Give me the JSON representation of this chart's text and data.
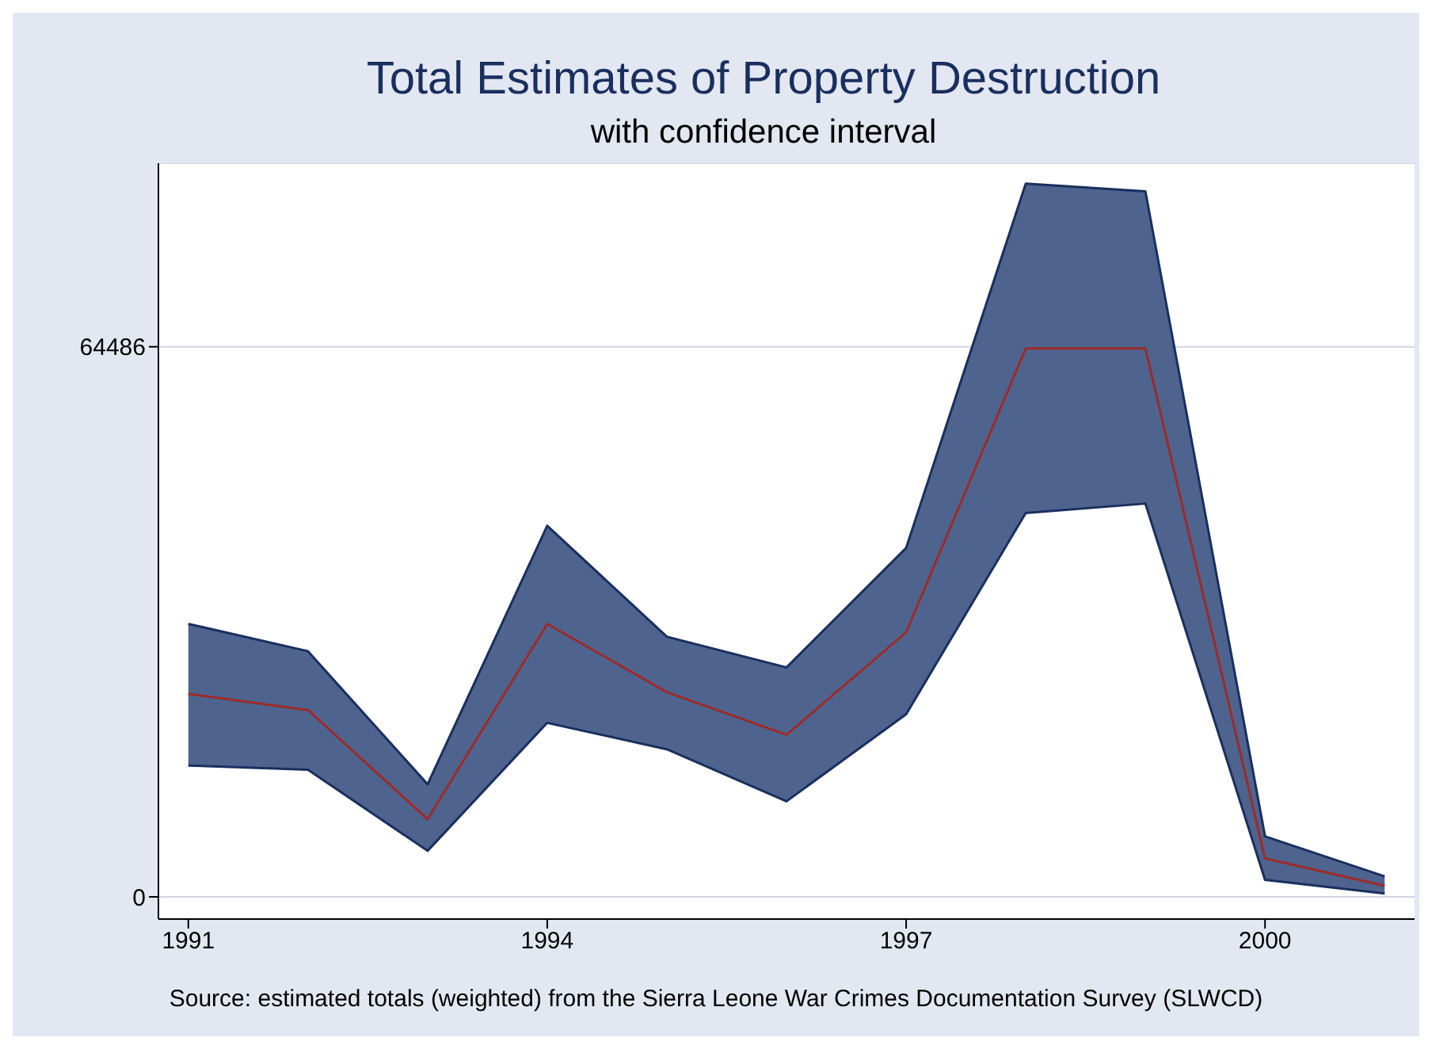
{
  "chart_data": {
    "type": "line",
    "title": "Total Estimates of Property Destruction",
    "subtitle": "with confidence interval",
    "annotations": [
      "Source: estimated totals (weighted) from the Sierra Leone War Crimes Documentation Survey (SLWCD)"
    ],
    "x": [
      1991,
      1992,
      1993,
      1994,
      1995,
      1996,
      1997,
      1998,
      1999,
      2000,
      2001
    ],
    "series": [
      {
        "color": "#9b2b2b",
        "values": [
          23800,
          21900,
          9100,
          32000,
          24000,
          19000,
          31000,
          64300,
          64300,
          4500,
          1300
        ],
        "lower": [
          15400,
          14900,
          5400,
          20400,
          17300,
          11200,
          21400,
          45000,
          46100,
          2000,
          400
        ],
        "upper": [
          32000,
          28800,
          13200,
          43500,
          30500,
          26900,
          40900,
          83600,
          82700,
          7100,
          2400
        ]
      },
      {
        "color": "#1a2f5e",
        "values": [
          32000,
          28800,
          13200,
          43500,
          30500,
          26900,
          40900,
          83600,
          82700,
          7100,
          2400
        ]
      },
      {
        "color": "#1a2f5e",
        "values": [
          15400,
          14900,
          5400,
          20400,
          17300,
          11200,
          21400,
          45000,
          46100,
          2000,
          400
        ]
      }
    ],
    "xlim": [
      1990.75,
      2001.25
    ],
    "xticks": [
      1991,
      1994,
      1997,
      2000
    ],
    "ylim": [
      -2600,
      86000
    ],
    "yticks": [
      0,
      64486
    ],
    "grid": "y",
    "marker": "none",
    "line_style": "solid"
  }
}
